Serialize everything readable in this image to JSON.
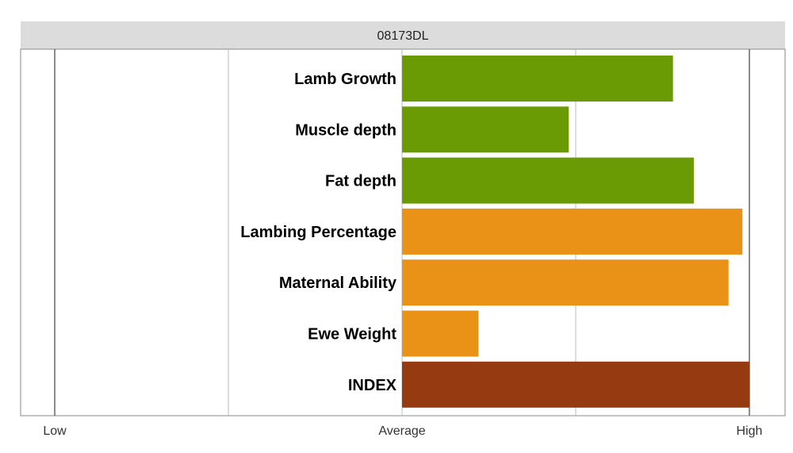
{
  "chart_data": {
    "type": "bar",
    "orientation": "horizontal",
    "title": "08173DL",
    "categories": [
      "Lamb Growth",
      "Muscle depth",
      "Fat depth",
      "Lambing Percentage",
      "Maternal Ability",
      "Ewe Weight",
      "INDEX"
    ],
    "values": [
      0.78,
      0.48,
      0.84,
      0.98,
      0.94,
      0.22,
      1.0
    ],
    "colors": [
      "#6a9a04",
      "#6a9a04",
      "#6a9a04",
      "#ea9118",
      "#ea9118",
      "#ea9118",
      "#963a11"
    ],
    "x_ticks": [
      "Low",
      "Average",
      "High"
    ],
    "xlim": [
      -1,
      1
    ],
    "grid": true,
    "legend": "none",
    "colors_meta": {
      "header_band": "#dcdcdc",
      "gridline": "#bbbbbb",
      "frame": "#888888"
    }
  }
}
